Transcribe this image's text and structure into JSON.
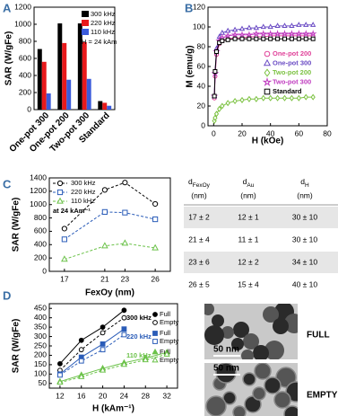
{
  "chart_data": [
    {
      "type": "bar",
      "panel": "A",
      "ylabel": "SAR (W/gFe)",
      "annotation": "H = 24 kAm",
      "categories": [
        "One-pot 300",
        "One-pot 200",
        "Two-pot 300",
        "Standard"
      ],
      "series": [
        {
          "name": "300 kHz",
          "color": "#000000",
          "values": [
            710,
            1010,
            1010,
            100
          ]
        },
        {
          "name": "220 kHz",
          "color": "#e8191b",
          "values": [
            560,
            780,
            790,
            80
          ]
        },
        {
          "name": "110 kHz",
          "color": "#3b5bdb",
          "values": [
            190,
            350,
            360,
            45
          ]
        }
      ],
      "ylim": [
        0,
        1200
      ],
      "yticks": [
        0,
        200,
        400,
        600,
        800,
        1000,
        1200
      ]
    },
    {
      "type": "line",
      "panel": "B",
      "xlabel": "H (kOe)",
      "ylabel": "M (emu/g)",
      "x": [
        0.5,
        1,
        2,
        4,
        6,
        10,
        15,
        20,
        25,
        30,
        35,
        40,
        45,
        50,
        55,
        60,
        65,
        70
      ],
      "series": [
        {
          "name": "One-pot 200",
          "color": "#e0439a",
          "marker": "circle",
          "values": [
            28,
            50,
            72,
            83,
            86,
            88,
            89,
            89,
            90,
            90,
            90,
            91,
            91,
            91,
            91,
            91,
            91,
            91
          ]
        },
        {
          "name": "One-pot 300",
          "color": "#6a4bc4",
          "marker": "triangle",
          "values": [
            30,
            55,
            78,
            90,
            94,
            96,
            97,
            98,
            99,
            99,
            100,
            100,
            101,
            101,
            101,
            102,
            102,
            102
          ]
        },
        {
          "name": "Two-pot 200",
          "color": "#7cc242",
          "marker": "diamond",
          "values": [
            5,
            8,
            12,
            17,
            20,
            23,
            25,
            26,
            27,
            27,
            28,
            28,
            28,
            28,
            28,
            28,
            29,
            29
          ]
        },
        {
          "name": "Two-pot 300",
          "color": "#c03cc0",
          "marker": "star",
          "values": [
            30,
            53,
            75,
            86,
            89,
            91,
            92,
            92,
            92,
            93,
            93,
            93,
            93,
            93,
            93,
            93,
            93,
            93
          ]
        },
        {
          "name": "Standard",
          "color": "#000000",
          "marker": "square",
          "values": [
            30,
            55,
            75,
            84,
            86,
            87,
            88,
            88,
            88,
            88,
            88,
            88,
            88,
            88,
            88,
            88,
            88,
            88
          ]
        }
      ],
      "xlim": [
        -4,
        80
      ],
      "xticks": [
        0,
        20,
        40,
        60,
        80
      ],
      "ylim": [
        0,
        120
      ],
      "yticks": [
        0,
        20,
        40,
        60,
        80,
        100,
        120
      ]
    },
    {
      "type": "line",
      "panel": "C",
      "xlabel": "FexOy (nm)",
      "ylabel": "SAR (W/gFe)",
      "annotation": "at 24 kAm⁻¹",
      "x": [
        17,
        21,
        23,
        26
      ],
      "series": [
        {
          "name": "300 kHz",
          "color": "#000000",
          "marker": "circle",
          "values": [
            640,
            1220,
            1330,
            1010
          ]
        },
        {
          "name": "220 kHz",
          "color": "#2a5cb8",
          "marker": "square",
          "values": [
            480,
            890,
            880,
            780
          ]
        },
        {
          "name": "110 kHz",
          "color": "#6cc24a",
          "marker": "triangle",
          "values": [
            180,
            380,
            420,
            350
          ]
        }
      ],
      "xlim": [
        15.5,
        27.5
      ],
      "xticks": [
        17,
        21,
        23,
        26
      ],
      "ylim": [
        0,
        1400
      ],
      "yticks": [
        0,
        200,
        400,
        600,
        800,
        1000,
        1200,
        1400
      ]
    },
    {
      "type": "grouped-line",
      "panel": "D",
      "xlabel": "H (kAm⁻¹)",
      "ylabel": "SAR (W/gFe)",
      "groups": [
        {
          "label": "300 kHz",
          "color": "#000000",
          "marker": "circle",
          "series": [
            {
              "name": "Full",
              "filled": true,
              "x": [
                12,
                16,
                20,
                24
              ],
              "values": [
                155,
                280,
                350,
                440
              ]
            },
            {
              "name": "Empty",
              "filled": false,
              "x": [
                12,
                16,
                20,
                24
              ],
              "values": [
                120,
                230,
                320,
                400
              ]
            }
          ]
        },
        {
          "label": "220 kHz",
          "color": "#2a5cb8",
          "marker": "square",
          "series": [
            {
              "name": "Full",
              "filled": true,
              "x": [
                12,
                16,
                20,
                24
              ],
              "values": [
                100,
                190,
                260,
                340
              ]
            },
            {
              "name": "Empty",
              "filled": false,
              "x": [
                12,
                16,
                20,
                24
              ],
              "values": [
                95,
                170,
                230,
                310
              ]
            }
          ]
        },
        {
          "label": "110 kHz",
          "color": "#6cc24a",
          "marker": "triangle",
          "series": [
            {
              "name": "Full",
              "filled": true,
              "x": [
                12,
                16,
                20,
                24,
                28,
                32
              ],
              "values": [
                60,
                95,
                130,
                160,
                185,
                215
              ]
            },
            {
              "name": "Empty",
              "filled": false,
              "x": [
                12,
                16,
                20,
                24,
                28,
                32
              ],
              "values": [
                55,
                85,
                120,
                150,
                175,
                205
              ]
            }
          ]
        }
      ],
      "xlim": [
        10,
        34
      ],
      "xticks": [
        12,
        16,
        20,
        24,
        28,
        32
      ],
      "ylim": [
        25,
        475
      ],
      "yticks": [
        50,
        100,
        150,
        200,
        250,
        300,
        350,
        400,
        450
      ]
    }
  ],
  "table": {
    "header": [
      {
        "symbol": "d",
        "sub": "FexOy",
        "unit": "(nm)"
      },
      {
        "symbol": "d",
        "sub": "Au",
        "unit": "(nm)"
      },
      {
        "symbol": "d",
        "sub": "H",
        "unit": "(nm)"
      }
    ],
    "rows": [
      [
        "17 ± 2",
        "12 ± 1",
        "30 ± 10"
      ],
      [
        "21 ± 4",
        "11 ± 1",
        "30 ± 10"
      ],
      [
        "23 ± 6",
        "12 ± 2",
        "34 ± 10"
      ],
      [
        "26 ± 5",
        "15 ± 4",
        "40 ± 10"
      ]
    ]
  },
  "images": [
    {
      "scale": "50 nm",
      "label": "FULL"
    },
    {
      "scale": "50 nm",
      "label": "EMPTY"
    }
  ]
}
